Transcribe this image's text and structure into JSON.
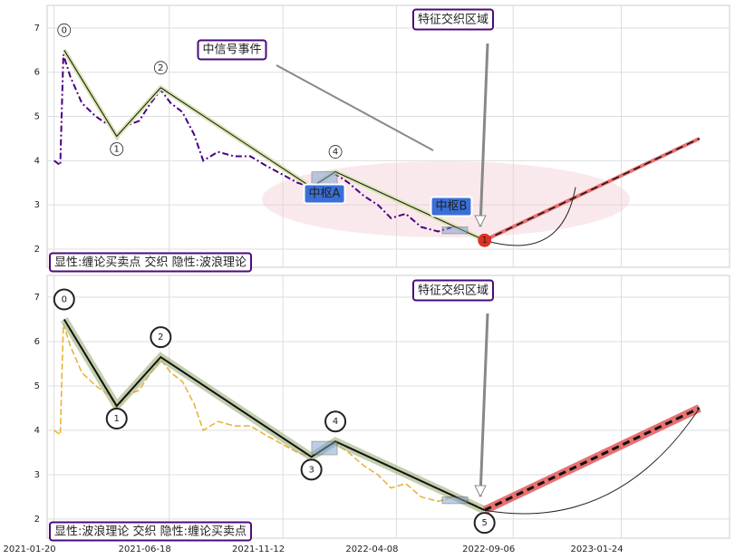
{
  "chart_data": [
    {
      "type": "line",
      "xlim": [
        "2021-01-11",
        "2023-06-13"
      ],
      "ylim": [
        1.59,
        7.51
      ],
      "yticks": [
        2,
        3,
        4,
        5,
        6,
        7
      ],
      "x": [
        "2021-01-20",
        "2021-01-28",
        "2021-02-01",
        "2021-02-10",
        "2021-02-25",
        "2021-03-15",
        "2021-04-01",
        "2021-04-11",
        "2021-04-25",
        "2021-05-10",
        "2021-05-25",
        "2021-06-07",
        "2021-06-20",
        "2021-07-05",
        "2021-07-20",
        "2021-08-01",
        "2021-08-20",
        "2021-09-10",
        "2021-10-01",
        "2021-10-20",
        "2021-11-10",
        "2021-12-01",
        "2021-12-19",
        "2022-01-05",
        "2022-01-19",
        "2022-02-05",
        "2022-02-25",
        "2022-03-15",
        "2022-04-01",
        "2022-04-20",
        "2022-05-10",
        "2022-06-01",
        "2022-06-20",
        "2022-07-10",
        "2022-07-31"
      ],
      "series": [
        {
          "color": "#4b0082",
          "values": [
            4.0,
            3.9,
            6.4,
            5.9,
            5.3,
            5.0,
            4.8,
            4.5,
            4.8,
            4.9,
            5.3,
            5.6,
            5.3,
            5.1,
            4.6,
            4.0,
            4.2,
            4.1,
            4.1,
            3.9,
            3.7,
            3.5,
            3.4,
            3.6,
            3.7,
            3.5,
            3.2,
            3.0,
            2.7,
            2.8,
            2.5,
            2.4,
            2.5,
            2.4,
            2.2
          ]
        }
      ],
      "wave": {
        "x": [
          "2021-02-02",
          "2021-04-11",
          "2021-06-07",
          "2021-12-19",
          "2022-01-19",
          "2022-07-31"
        ],
        "y": [
          6.5,
          4.55,
          5.65,
          3.4,
          3.75,
          2.2
        ],
        "labels": [
          "0",
          "1",
          "2",
          null,
          "4",
          "1"
        ]
      },
      "forecast": {
        "x": [
          "2022-07-31",
          "2023-05-05"
        ],
        "y": [
          2.2,
          4.5
        ]
      },
      "annotations": [
        "特征交织区域",
        "中信号事件",
        "中枢A",
        "中枢B"
      ],
      "legend": "显性:缠论买卖点 交织 隐性:波浪理论"
    },
    {
      "type": "line",
      "xlim": [
        "2021-01-11",
        "2023-06-13"
      ],
      "ylim": [
        1.57,
        7.49
      ],
      "yticks": [
        2,
        3,
        4,
        5,
        6,
        7
      ],
      "xticks": [
        "2021-01-20",
        "2021-06-18",
        "2021-11-12",
        "2022-04-08",
        "2022-09-06",
        "2023-01-24"
      ],
      "x": [
        "2021-01-20",
        "2021-01-28",
        "2021-02-01",
        "2021-02-10",
        "2021-02-25",
        "2021-03-15",
        "2021-04-01",
        "2021-04-11",
        "2021-04-25",
        "2021-05-10",
        "2021-05-25",
        "2021-06-07",
        "2021-06-20",
        "2021-07-05",
        "2021-07-20",
        "2021-08-01",
        "2021-08-20",
        "2021-09-10",
        "2021-10-01",
        "2021-10-20",
        "2021-11-10",
        "2021-12-01",
        "2021-12-19",
        "2022-01-05",
        "2022-01-19",
        "2022-02-05",
        "2022-02-25",
        "2022-03-15",
        "2022-04-01",
        "2022-04-20",
        "2022-05-10",
        "2022-06-01",
        "2022-06-20",
        "2022-07-10",
        "2022-07-31"
      ],
      "series": [
        {
          "color": "#e8b030",
          "values": [
            4.0,
            3.9,
            6.4,
            5.9,
            5.3,
            5.0,
            4.8,
            4.5,
            4.8,
            4.9,
            5.3,
            5.6,
            5.3,
            5.1,
            4.6,
            4.0,
            4.2,
            4.1,
            4.1,
            3.9,
            3.7,
            3.5,
            3.4,
            3.6,
            3.7,
            3.5,
            3.2,
            3.0,
            2.7,
            2.8,
            2.5,
            2.4,
            2.5,
            2.4,
            2.2
          ]
        }
      ],
      "wave": {
        "x": [
          "2021-02-02",
          "2021-04-11",
          "2021-06-07",
          "2021-12-19",
          "2022-01-19",
          "2022-07-31"
        ],
        "y": [
          6.5,
          4.55,
          5.65,
          3.4,
          3.75,
          2.2
        ],
        "labels": [
          "0",
          "1",
          "2",
          "3",
          "4",
          "5"
        ]
      },
      "forecast": {
        "x": [
          "2022-07-31",
          "2023-05-05"
        ],
        "y": [
          2.2,
          4.5
        ]
      },
      "annotations": [
        "特征交织区域"
      ],
      "legend": "显性:波浪理论 交织 隐性:缠论买卖点"
    }
  ]
}
